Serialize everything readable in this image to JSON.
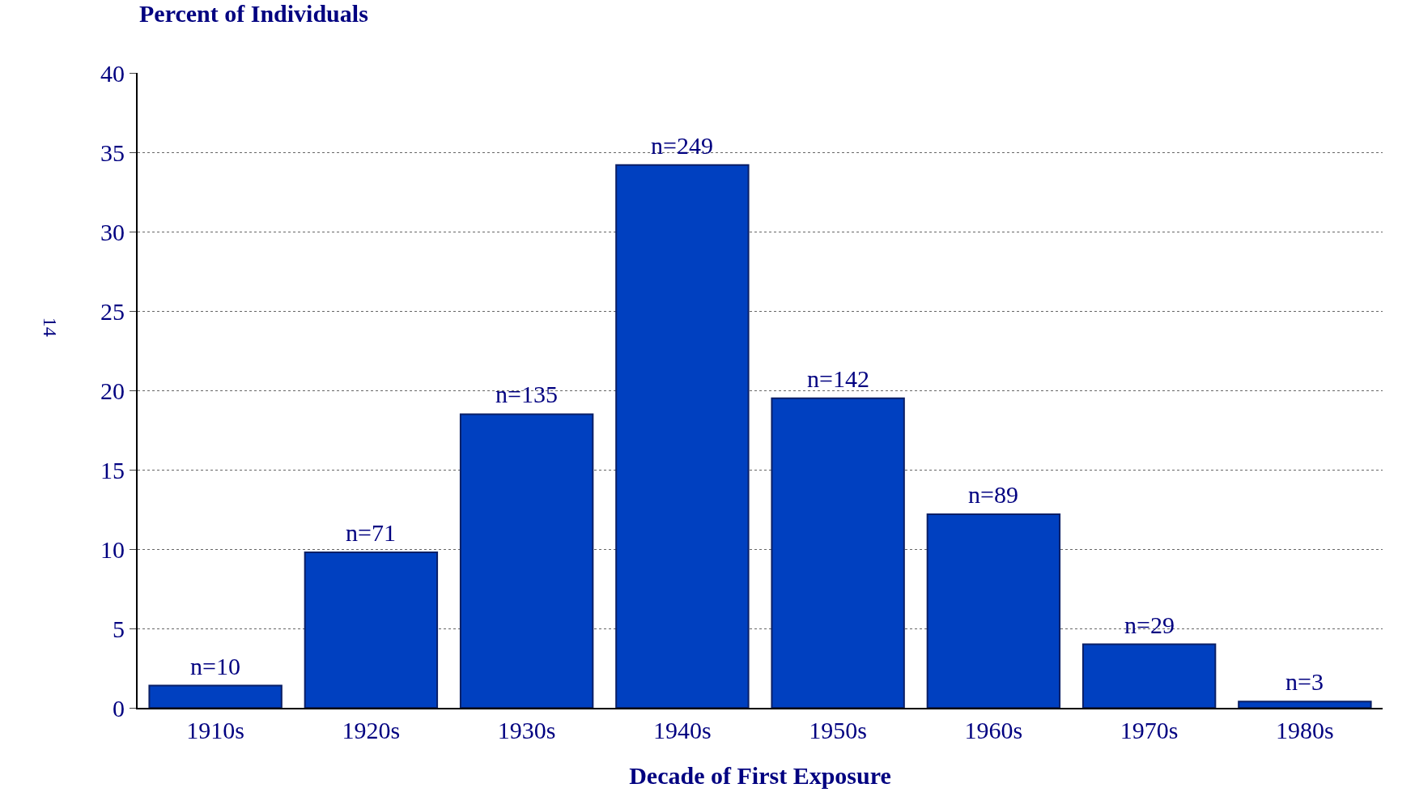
{
  "chart_data": {
    "type": "bar",
    "ylabel": "Percent of Individuals",
    "xlabel": "Decade of First Exposure",
    "categories": [
      "1910s",
      "1920s",
      "1930s",
      "1940s",
      "1950s",
      "1960s",
      "1970s",
      "1980s"
    ],
    "values": [
      1.4,
      9.8,
      18.5,
      34.2,
      19.5,
      12.2,
      4.0,
      0.4
    ],
    "color": "#0040c0",
    "ylim": [
      0,
      40
    ],
    "yticks": [
      0,
      5,
      10,
      15,
      20,
      25,
      30,
      35,
      40
    ],
    "grid": "y",
    "legend": false,
    "annotations": [
      "14",
      {
        "text": "n=10",
        "x": "1910s",
        "y": 1.4
      },
      {
        "text": "n=71",
        "x": "1920s",
        "y": 9.8
      },
      {
        "text": "n=135",
        "x": "1930s",
        "y": 18.5
      },
      {
        "text": "n=249",
        "x": "1940s",
        "y": 34.2
      },
      {
        "text": "n=142",
        "x": "1950s",
        "y": 19.5
      },
      {
        "text": "n=89",
        "x": "1960s",
        "y": 12.2
      },
      {
        "text": "n=29",
        "x": "1970s",
        "y": 4.0
      },
      {
        "text": "n=3",
        "x": "1980s",
        "y": 0.4
      }
    ]
  }
}
